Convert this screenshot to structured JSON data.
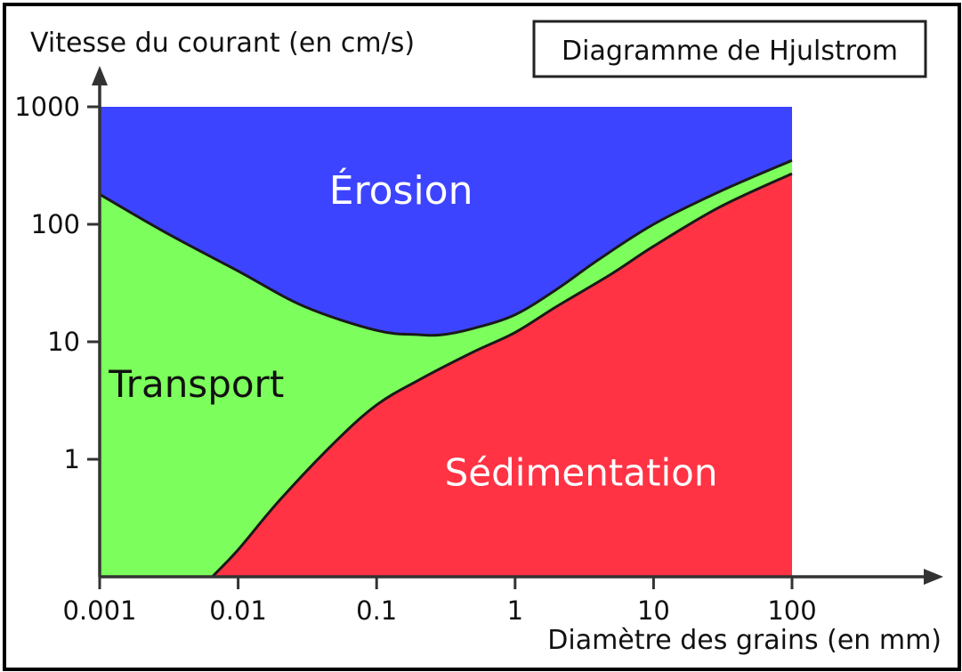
{
  "chart_data": {
    "type": "area",
    "title": "Diagramme de Hjulstrom",
    "ylabel": "Vitesse du courant (en cm/s)",
    "xlabel": "Diamètre des grains (en mm)",
    "x_scale": "log",
    "y_scale": "log",
    "xlim": [
      0.001,
      100
    ],
    "ylim": [
      0.1,
      1000
    ],
    "x_ticks": [
      0.001,
      0.01,
      0.1,
      1,
      10,
      100
    ],
    "x_tick_labels": [
      "0.001",
      "0.01",
      "0.1",
      "1",
      "10",
      "100"
    ],
    "y_ticks": [
      1,
      10,
      100,
      1000
    ],
    "y_tick_labels": [
      "1",
      "10",
      "100",
      "1000"
    ],
    "grid": false,
    "regions": [
      {
        "name": "Érosion",
        "color": "#3d44ff",
        "label_position": {
          "x": 0.15,
          "y": 150
        }
      },
      {
        "name": "Transport",
        "color": "#7cff5c",
        "label_position": {
          "x": 0.005,
          "y": 3.4
        }
      },
      {
        "name": "Sédimentation",
        "color": "#ff3344",
        "label_position": {
          "x": 3,
          "y": 0.6
        }
      }
    ],
    "series": [
      {
        "role": "erosion-threshold",
        "x": [
          0.001,
          0.003,
          0.01,
          0.03,
          0.1,
          0.2,
          0.3,
          0.5,
          1,
          2,
          4,
          10,
          30,
          100
        ],
        "values": [
          180,
          85,
          40,
          20,
          12.5,
          11.5,
          11.5,
          13,
          17,
          28,
          50,
          100,
          190,
          350
        ]
      },
      {
        "role": "sedimentation-threshold",
        "x": [
          0.0065,
          0.01,
          0.02,
          0.05,
          0.1,
          0.2,
          0.5,
          1,
          2,
          5,
          10,
          30,
          100
        ],
        "values": [
          0.1,
          0.17,
          0.45,
          1.4,
          2.9,
          4.7,
          8.2,
          12,
          20,
          38,
          65,
          140,
          270
        ]
      }
    ]
  }
}
